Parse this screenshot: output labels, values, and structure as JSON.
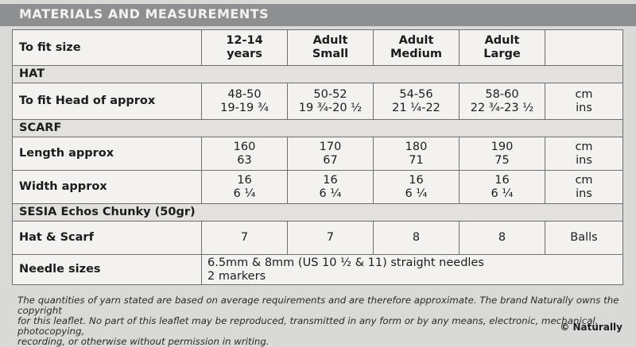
{
  "header": {
    "title": "MATERIALS AND MEASUREMENTS"
  },
  "sizes": {
    "label": "To fit size",
    "columns": [
      [
        "12-14",
        "years"
      ],
      [
        "Adult",
        "Small"
      ],
      [
        "Adult",
        "Medium"
      ],
      [
        "Adult",
        "Large"
      ]
    ]
  },
  "hat": {
    "section": "HAT",
    "head": {
      "label": "To fit Head of approx",
      "cm": [
        "48-50",
        "50-52",
        "54-56",
        "58-60"
      ],
      "ins": [
        "19-19 ¾",
        "19 ¾-20 ½",
        "21 ¼-22",
        "22 ¾-23 ½"
      ],
      "units": [
        "cm",
        "ins"
      ]
    }
  },
  "scarf": {
    "section": "SCARF",
    "length": {
      "label": "Length approx",
      "cm": [
        "160",
        "170",
        "180",
        "190"
      ],
      "ins": [
        "63",
        "67",
        "71",
        "75"
      ],
      "units": [
        "cm",
        "ins"
      ]
    },
    "width": {
      "label": "Width approx",
      "cm": [
        "16",
        "16",
        "16",
        "16"
      ],
      "ins": [
        "6 ¼",
        "6 ¼",
        "6 ¼",
        "6 ¼"
      ],
      "units": [
        "cm",
        "ins"
      ]
    }
  },
  "yarn": {
    "section": "SESIA Echos Chunky (50gr)",
    "hat_scarf": {
      "label": "Hat & Scarf",
      "values": [
        "7",
        "7",
        "8",
        "8"
      ],
      "unit": "Balls"
    }
  },
  "needles": {
    "label": "Needle sizes",
    "lines": [
      "6.5mm & 8mm (US 10 ½ & 11) straight needles",
      "2 markers"
    ]
  },
  "footer": {
    "lines": [
      "The quantities of yarn stated are based on average requirements and are therefore approximate. The brand Naturally owns the copyright",
      "for this leaflet. No part of this leaflet may be reproduced, transmitted in any form or by any means, electronic, mechanical, photocopying,",
      "recording, or otherwise without permission in writing."
    ],
    "copyright": "© Naturally"
  }
}
